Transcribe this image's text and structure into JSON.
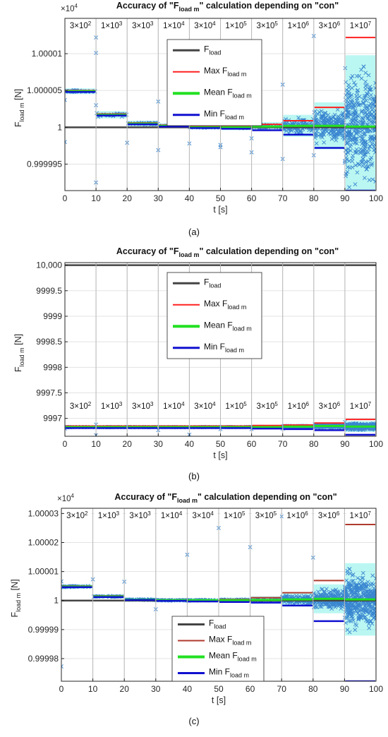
{
  "panels": [
    {
      "caption": "(a)",
      "exponent": "×10",
      "exponent_power": "4",
      "chart_data": {
        "type": "scatter",
        "title_parts": [
          "Accuracy of \"F",
          "load m",
          "\" calculation depending on \"con\""
        ],
        "ylabel_main": "F",
        "ylabel_sub": "load m",
        "ylabel_unit": " [N]",
        "xlabel": "t [s]",
        "xlim": [
          0,
          100
        ],
        "ylim": [
          0.9999914,
          1.0000148
        ],
        "xticks": [
          0,
          10,
          20,
          30,
          40,
          50,
          60,
          70,
          80,
          90,
          100
        ],
        "xtick_labels": [
          "0",
          "10",
          "20",
          "30",
          "40",
          "50",
          "60",
          "70",
          "80",
          "90",
          "100"
        ],
        "yticks": [
          0.999995,
          1,
          1.000005,
          1.00001
        ],
        "ytick_labels": [
          "0.999995",
          "1",
          "1.000005",
          "1.00001"
        ],
        "con_labels": [
          [
            "3×10",
            "2"
          ],
          [
            "1×10",
            "3"
          ],
          [
            "3×10",
            "3"
          ],
          [
            "1×10",
            "4"
          ],
          [
            "3×10",
            "4"
          ],
          [
            "1×10",
            "5"
          ],
          [
            "3×10",
            "5"
          ],
          [
            "1×10",
            "6"
          ],
          [
            "3×10",
            "6"
          ],
          [
            "1×10",
            "7"
          ]
        ],
        "f_load": 1,
        "max": [
          1.000005,
          1.0000018,
          1.0000006,
          1.0000003,
          1.0000002,
          1.0000001,
          1.0000004,
          1.0000009,
          1.0000027,
          1.0000122
        ],
        "mean": [
          1.0000049,
          1.0000017,
          1.0000005,
          1.0000002,
          1.0,
          1.0,
          1.0000001,
          1.0000002,
          1.0000002,
          1.0000001
        ],
        "min": [
          1.0000048,
          1.0000016,
          1.0000004,
          1.0000001,
          0.9999999,
          0.9999998,
          0.9999996,
          0.999999,
          0.9999972,
          0.9999914
        ],
        "spread": [
          2e-07,
          3e-07,
          2e-07,
          1e-07,
          1e-07,
          2e-07,
          4e-07,
          1.3e-06,
          3e-06,
          9.5e-06
        ],
        "outliers": [
          [
            0,
            1.0000037
          ],
          [
            0,
            0.999998
          ],
          [
            10,
            1.0000122
          ],
          [
            10,
            1.0000101
          ],
          [
            10,
            1.000003
          ],
          [
            10,
            0.9999925
          ],
          [
            20,
            0.9999979
          ],
          [
            30,
            1.0000035
          ],
          [
            30,
            0.9999969
          ],
          [
            40,
            0.9999978
          ],
          [
            50,
            0.9999976
          ],
          [
            50,
            0.9999973
          ],
          [
            60,
            0.9999985
          ],
          [
            60,
            0.9999966
          ],
          [
            70,
            1.0000058
          ],
          [
            70,
            0.9999957
          ],
          [
            80,
            1.0000124
          ],
          [
            80,
            0.9999962
          ]
        ],
        "seed": 11,
        "legend": {
          "position": "upper-center",
          "entries": [
            {
              "main": "F",
              "sub": "load",
              "color": "#444444",
              "width": 3
            },
            {
              "main": "Max F",
              "sub": "load m",
              "color": "#ff2020",
              "width": 2
            },
            {
              "main": "Mean F",
              "sub": "load m",
              "color": "#22e022",
              "width": 4
            },
            {
              "main": "Min F",
              "sub": "load m",
              "color": "#1010d0",
              "width": 3
            }
          ]
        },
        "grid": true
      }
    },
    {
      "caption": "(b)",
      "exponent": "",
      "exponent_power": "",
      "chart_data": {
        "type": "scatter",
        "title_parts": [
          "Accuracy of \"F",
          "load m",
          "\" calculation depending on \"con\""
        ],
        "ylabel_main": "F",
        "ylabel_sub": "load m",
        "ylabel_unit": " [N]",
        "xlabel": "t [s]",
        "xlim": [
          0,
          100
        ],
        "ylim": [
          9996.65,
          10000.05
        ],
        "xticks": [
          0,
          10,
          20,
          30,
          40,
          50,
          60,
          70,
          80,
          90,
          100
        ],
        "xtick_labels": [
          "0",
          "10",
          "20",
          "30",
          "40",
          "50",
          "60",
          "70",
          "80",
          "90",
          "100"
        ],
        "yticks": [
          9997,
          9997.5,
          9998,
          9998.5,
          9999,
          9999.5,
          10000
        ],
        "ytick_labels": [
          "9997",
          "9997.5",
          "9998",
          "9998.5",
          "9999",
          "9999.5",
          "10,000"
        ],
        "con_labels": [
          [
            "3×10",
            "2"
          ],
          [
            "1×10",
            "3"
          ],
          [
            "3×10",
            "3"
          ],
          [
            "1×10",
            "4"
          ],
          [
            "3×10",
            "4"
          ],
          [
            "1×10",
            "5"
          ],
          [
            "3×10",
            "5"
          ],
          [
            "1×10",
            "6"
          ],
          [
            "3×10",
            "6"
          ],
          [
            "1×10",
            "7"
          ]
        ],
        "f_load": 10000,
        "max": [
          9996.85,
          9996.85,
          9996.85,
          9996.85,
          9996.85,
          9996.85,
          9996.86,
          9996.87,
          9996.91,
          9996.98
        ],
        "mean": [
          9996.83,
          9996.83,
          9996.83,
          9996.83,
          9996.83,
          9996.83,
          9996.83,
          9996.84,
          9996.85,
          9996.84
        ],
        "min": [
          9996.81,
          9996.81,
          9996.81,
          9996.81,
          9996.81,
          9996.81,
          9996.8,
          9996.79,
          9996.77,
          9996.68
        ],
        "spread": [
          0.005,
          0.005,
          0.005,
          0.005,
          0.005,
          0.005,
          0.01,
          0.02,
          0.04,
          0.08
        ],
        "outliers": [
          [
            0,
            9996.8
          ],
          [
            10,
            9996.67
          ],
          [
            10,
            9996.88
          ],
          [
            30,
            9996.77
          ],
          [
            40,
            9996.68
          ],
          [
            50,
            9996.79
          ],
          [
            60,
            9996.79
          ],
          [
            70,
            9996.8
          ],
          [
            80,
            9996.84
          ],
          [
            90,
            9996.93
          ]
        ],
        "seed": 23,
        "legend": {
          "position": "upper-center",
          "entries": [
            {
              "main": "F",
              "sub": "load",
              "color": "#444444",
              "width": 3
            },
            {
              "main": "Max F",
              "sub": "load m",
              "color": "#ff2020",
              "width": 2
            },
            {
              "main": "Mean F",
              "sub": "load m",
              "color": "#22e022",
              "width": 4
            },
            {
              "main": "Min F",
              "sub": "load m",
              "color": "#1010d0",
              "width": 3
            }
          ]
        },
        "grid": true
      }
    },
    {
      "caption": "(c)",
      "exponent": "×10",
      "exponent_power": "4",
      "chart_data": {
        "type": "scatter",
        "title_parts": [
          "Accuracy of \"F",
          "load m",
          "\" calculation depending on \"con\""
        ],
        "ylabel_main": "F",
        "ylabel_sub": "load m",
        "ylabel_unit": " [N]",
        "xlabel": "t [s]",
        "xlim": [
          0,
          100
        ],
        "ylim": [
          0.9999722,
          1.0000318
        ],
        "xticks": [
          0,
          10,
          20,
          30,
          40,
          50,
          60,
          70,
          80,
          90,
          100
        ],
        "xtick_labels": [
          "0",
          "10",
          "20",
          "30",
          "40",
          "50",
          "60",
          "70",
          "80",
          "90",
          "100"
        ],
        "yticks": [
          0.99998,
          0.99999,
          1,
          1.00001,
          1.00002,
          1.00003
        ],
        "ytick_labels": [
          "0.99998",
          "0.99999",
          "1",
          "1.00001",
          "1.00002",
          "1.00003"
        ],
        "con_labels": [
          [
            "3×10",
            "2"
          ],
          [
            "1×10",
            "3"
          ],
          [
            "3×10",
            "3"
          ],
          [
            "1×10",
            "4"
          ],
          [
            "3×10",
            "4"
          ],
          [
            "1×10",
            "5"
          ],
          [
            "3×10",
            "5"
          ],
          [
            "1×10",
            "6"
          ],
          [
            "3×10",
            "6"
          ],
          [
            "1×10",
            "7"
          ]
        ],
        "f_load": 1,
        "max": [
          1.000005,
          1.0000016,
          1.0000004,
          1.0000002,
          1.0000002,
          1.0000004,
          1.000001,
          1.0000027,
          1.0000069,
          1.0000262
        ],
        "mean": [
          1.0000048,
          1.0000014,
          1.0000003,
          1.0000001,
          1.0000001,
          1.0000001,
          1.0000002,
          1.0000004,
          1.0000006,
          1.0000004
        ],
        "min": [
          1.0000046,
          1.0000012,
          1.0000002,
          0.9999999,
          0.9999997,
          0.9999995,
          0.9999993,
          0.9999983,
          0.9999929,
          0.9999722
        ],
        "spread": [
          3e-07,
          2e-07,
          2e-07,
          2e-07,
          2e-07,
          4e-07,
          8e-07,
          2e-06,
          4.5e-06,
          1.2e-05
        ],
        "outliers": [
          [
            0,
            0.9999773
          ],
          [
            0,
            1.0000066
          ],
          [
            10,
            1.0000073
          ],
          [
            20,
            1.0000065
          ],
          [
            30,
            0.999997
          ],
          [
            40,
            1.0000158
          ],
          [
            50,
            1.000025
          ],
          [
            60,
            1.0000184
          ],
          [
            70,
            1.000029
          ],
          [
            80,
            1.0000148
          ]
        ],
        "seed": 37,
        "legend": {
          "position": "lower-center",
          "entries": [
            {
              "main": "F",
              "sub": "load",
              "color": "#444444",
              "width": 3
            },
            {
              "main": "Max F",
              "sub": "load m",
              "color": "#b03a2e",
              "width": 2
            },
            {
              "main": "Mean F",
              "sub": "load m",
              "color": "#22e022",
              "width": 4
            },
            {
              "main": "Min F",
              "sub": "load m",
              "color": "#1010d0",
              "width": 3
            }
          ]
        },
        "grid": true
      }
    }
  ],
  "colors": {
    "marker": "#3a86d0",
    "halo": "#8ef2ea",
    "axis": "#262626",
    "grid": "#e3e3e3"
  }
}
